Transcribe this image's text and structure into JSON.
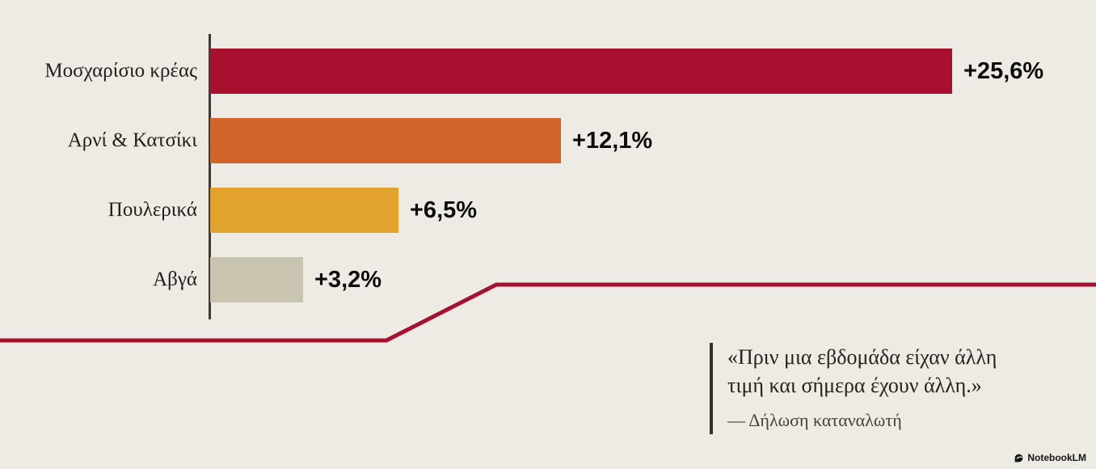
{
  "background": "#edebe4",
  "chart_data": {
    "type": "bar",
    "orientation": "horizontal",
    "title": "",
    "xlabel": "",
    "ylabel": "",
    "categories": [
      "Μοσχαρίσιο κρέας",
      "Αρνί & Κατσίκι",
      "Πουλερικά",
      "Αβγά"
    ],
    "values": [
      25.6,
      12.1,
      6.5,
      3.2
    ],
    "value_labels": [
      "+25,6%",
      "+12,1%",
      "+6,5%",
      "+3,2%"
    ],
    "bar_colors": [
      "#a8102f",
      "#d0642a",
      "#e2a32e",
      "#c8c4af"
    ],
    "xlim": [
      0,
      26
    ],
    "grid": false,
    "legend": "none",
    "axis_line_color": "#3d3a34"
  },
  "trend_line": {
    "color": "#a8102f",
    "description": "stylized rising price line"
  },
  "quote": {
    "line1": "«Πριν μια εβδομάδα είχαν άλλη",
    "line2": "τιμή και σήμερα έχουν άλλη.»",
    "attribution": "— Δήλωση καταναλωτή"
  },
  "watermark": {
    "label": "NotebookLM"
  }
}
